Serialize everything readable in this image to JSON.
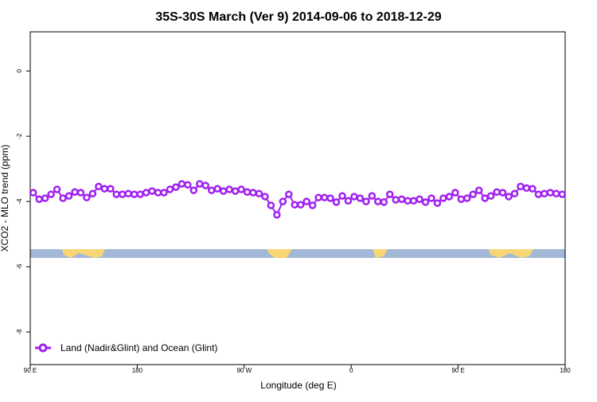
{
  "chart_data": {
    "type": "line",
    "title": "35S-30S March (Ver 9)   2014-09-06 to 2018-12-29",
    "xlabel": "Longitude (deg E)",
    "ylabel": "XCO2 - MLO trend (ppm)",
    "xlim": [
      90,
      540
    ],
    "ylim": [
      -9,
      1.2
    ],
    "xticks": [
      {
        "value": 90,
        "label": "90 E"
      },
      180,
      {
        "value": 270,
        "label": "90 W"
      },
      {
        "value": 360,
        "label": "0"
      },
      {
        "value": 450,
        "label": "90 E"
      },
      {
        "value": 540,
        "label": "180"
      }
    ],
    "yticks": [
      0,
      -2,
      -4,
      -6,
      -8
    ],
    "legend": "bottom-left",
    "x": [
      92.5,
      97.5,
      102.5,
      107.5,
      112.5,
      117.5,
      122.5,
      127.5,
      132.5,
      137.5,
      142.5,
      147.5,
      152.5,
      157.5,
      162.5,
      167.5,
      172.5,
      177.5,
      182.5,
      187.5,
      192.5,
      197.5,
      202.5,
      207.5,
      212.5,
      217.5,
      222.5,
      227.5,
      232.5,
      237.5,
      242.5,
      247.5,
      252.5,
      257.5,
      262.5,
      267.5,
      272.5,
      277.5,
      282.5,
      287.5,
      292.5,
      297.5,
      302.5,
      307.5,
      312.5,
      317.5,
      322.5,
      327.5,
      332.5,
      337.5,
      342.5,
      347.5,
      352.5,
      357.5,
      362.5,
      367.5,
      372.5,
      377.5,
      382.5,
      387.5,
      392.5,
      397.5,
      402.5,
      407.5,
      412.5,
      417.5,
      422.5,
      427.5,
      432.5,
      437.5,
      442.5,
      447.5,
      452.5,
      457.5,
      462.5,
      467.5,
      472.5,
      477.5,
      482.5,
      487.5,
      492.5,
      497.5,
      502.5,
      507.5,
      512.5,
      517.5,
      522.5,
      527.5,
      532.5,
      537.5
    ],
    "series": [
      {
        "name": "Land (Nadir&Glint) and Ocean (Glint)",
        "color": "#a020f0",
        "values": [
          -3.73,
          -3.93,
          -3.9,
          -3.78,
          -3.63,
          -3.9,
          -3.83,
          -3.71,
          -3.73,
          -3.88,
          -3.76,
          -3.54,
          -3.61,
          -3.61,
          -3.78,
          -3.78,
          -3.76,
          -3.78,
          -3.78,
          -3.73,
          -3.68,
          -3.73,
          -3.73,
          -3.63,
          -3.56,
          -3.46,
          -3.49,
          -3.66,
          -3.46,
          -3.51,
          -3.66,
          -3.61,
          -3.68,
          -3.63,
          -3.68,
          -3.63,
          -3.71,
          -3.73,
          -3.76,
          -3.85,
          -4.12,
          -4.41,
          -4.0,
          -3.78,
          -4.1,
          -4.1,
          -4.0,
          -4.12,
          -3.88,
          -3.88,
          -3.9,
          -4.02,
          -3.83,
          -3.98,
          -3.85,
          -3.9,
          -4.0,
          -3.83,
          -4.0,
          -4.02,
          -3.78,
          -3.95,
          -3.93,
          -3.98,
          -3.98,
          -3.93,
          -4.02,
          -3.9,
          -4.05,
          -3.9,
          -3.85,
          -3.73,
          -3.93,
          -3.9,
          -3.78,
          -3.66,
          -3.9,
          -3.83,
          -3.71,
          -3.73,
          -3.85,
          -3.76,
          -3.54,
          -3.59,
          -3.61,
          -3.78,
          -3.76,
          -3.73,
          -3.76,
          -3.78
        ]
      }
    ]
  }
}
